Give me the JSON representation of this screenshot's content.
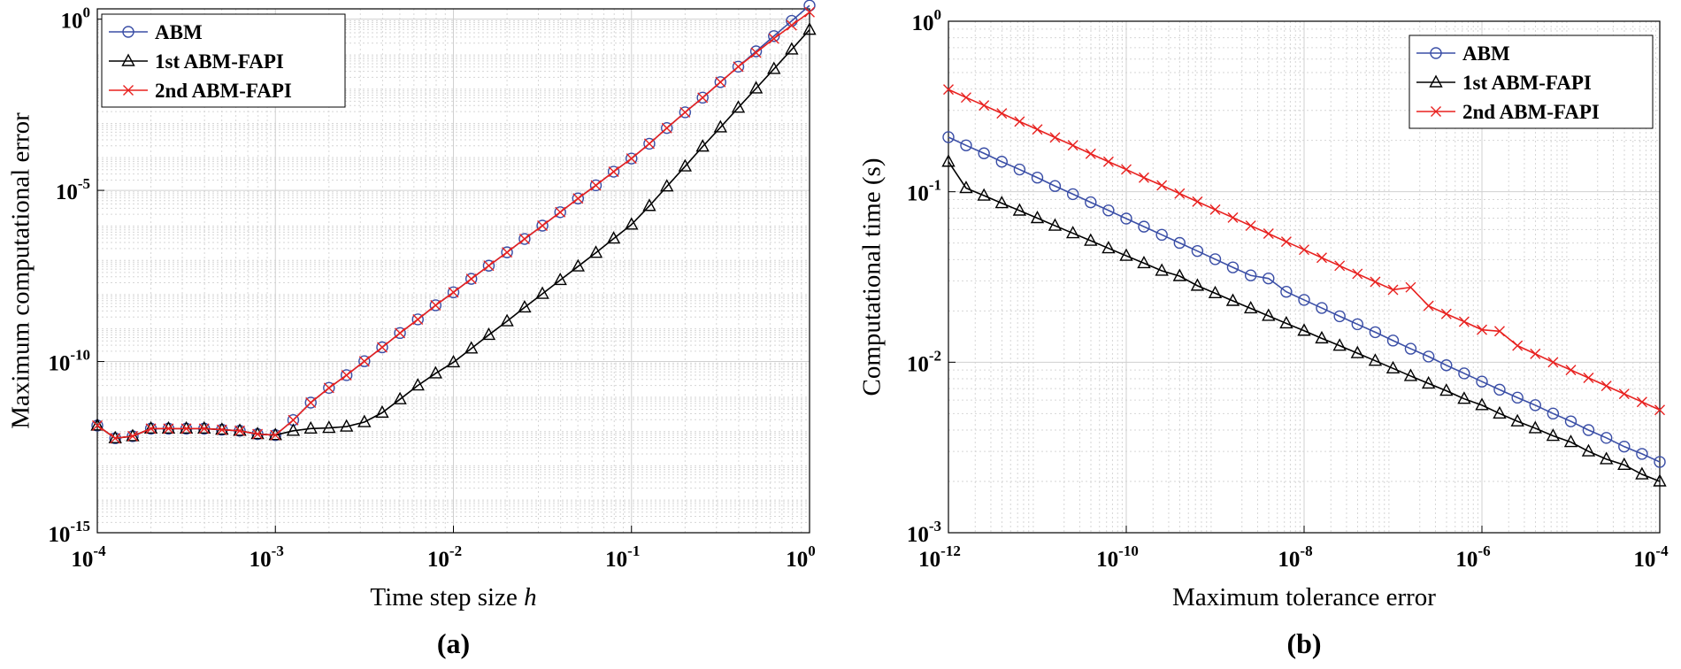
{
  "chart_data": [
    {
      "type": "line",
      "panel_label": "(a)",
      "xlabel": "Time step size",
      "xlabel_var": "h",
      "ylabel": "Maximum computational error",
      "xlog": true,
      "ylog": true,
      "grid": true,
      "minor_grid": true,
      "legend": "upper left",
      "xlim": [
        0.0001,
        1
      ],
      "ylim": [
        1e-15,
        2
      ],
      "xticks": [
        {
          "value": 0.0001,
          "label": "10",
          "exp": "-4"
        },
        {
          "value": 0.001,
          "label": "10",
          "exp": "-3"
        },
        {
          "value": 0.01,
          "label": "10",
          "exp": "-2"
        },
        {
          "value": 0.1,
          "label": "10",
          "exp": "-1"
        },
        {
          "value": 1,
          "label": "10",
          "exp": "0"
        }
      ],
      "yticks": [
        {
          "value": 1e-15,
          "label": "10",
          "exp": "-15"
        },
        {
          "value": 1e-10,
          "label": "10",
          "exp": "-10"
        },
        {
          "value": 1e-05,
          "label": "10",
          "exp": "-5"
        },
        {
          "value": 1,
          "label": "10",
          "exp": "0"
        }
      ],
      "x": [
        0.0001,
        0.000126,
        0.000158,
        0.0002,
        0.000251,
        0.000316,
        0.000398,
        0.000501,
        0.000631,
        0.000794,
        0.001,
        0.00126,
        0.00158,
        0.002,
        0.00251,
        0.00316,
        0.00398,
        0.00501,
        0.00631,
        0.00794,
        0.01,
        0.0126,
        0.0158,
        0.02,
        0.0251,
        0.0316,
        0.0398,
        0.0501,
        0.0631,
        0.0794,
        0.1,
        0.126,
        0.158,
        0.2,
        0.251,
        0.316,
        0.398,
        0.501,
        0.631,
        0.794,
        1
      ],
      "series": [
        {
          "name": "ABM",
          "color": "#3a4ea6",
          "marker": "o",
          "values": [
            1.35e-12,
            5.75e-13,
            6.6e-13,
            1.1e-12,
            1.1e-12,
            1.1e-12,
            1.1e-12,
            1.02e-12,
            9.5e-13,
            7.6e-13,
            7.1e-13,
            1.95e-12,
            6.3e-12,
            1.7e-11,
            4e-11,
            1.02e-10,
            2.6e-10,
            6.8e-10,
            1.7e-09,
            4.4e-09,
            1.05e-08,
            2.6e-08,
            6.3e-08,
            1.55e-07,
            3.8e-07,
            9.3e-07,
            2.3e-06,
            5.8e-06,
            1.4e-05,
            3.5e-05,
            8.5e-05,
            0.00023,
            0.00066,
            0.0019,
            0.0051,
            0.0145,
            0.041,
            0.115,
            0.32,
            0.89,
            2.5
          ]
        },
        {
          "name": "1st ABM-FAPI",
          "color": "#000000",
          "marker": "^",
          "values": [
            1.35e-12,
            5.75e-13,
            6.6e-13,
            1.1e-12,
            1.1e-12,
            1.1e-12,
            1.1e-12,
            1.02e-12,
            9.5e-13,
            7.6e-13,
            7.1e-13,
            9.5e-13,
            1.1e-12,
            1.15e-12,
            1.26e-12,
            1.7e-12,
            3.2e-12,
            7.9e-12,
            2e-11,
            4.5e-11,
            9.5e-11,
            2.4e-10,
            6e-10,
            1.5e-09,
            3.8e-09,
            9.5e-09,
            2.4e-08,
            6e-08,
            1.5e-07,
            3.9e-07,
            1e-06,
            3.5e-06,
            1.3e-05,
            5e-05,
            0.00019,
            0.00069,
            0.0026,
            0.0095,
            0.035,
            0.13,
            0.49
          ]
        },
        {
          "name": "2nd ABM-FAPI",
          "color": "#e8211f",
          "marker": "x",
          "values": [
            1.35e-12,
            5.75e-13,
            6.6e-13,
            1.1e-12,
            1.1e-12,
            1.1e-12,
            1.1e-12,
            1.02e-12,
            9.5e-13,
            7.6e-13,
            7.1e-13,
            1.95e-12,
            6.3e-12,
            1.7e-11,
            4e-11,
            1.02e-10,
            2.6e-10,
            6.8e-10,
            1.7e-09,
            4.4e-09,
            1.05e-08,
            2.6e-08,
            6.3e-08,
            1.55e-07,
            3.8e-07,
            9.3e-07,
            2.3e-06,
            5.8e-06,
            1.4e-05,
            3.5e-05,
            8.5e-05,
            0.00023,
            0.00066,
            0.0019,
            0.0051,
            0.0145,
            0.041,
            0.105,
            0.27,
            0.66,
            1.6
          ]
        }
      ]
    },
    {
      "type": "line",
      "panel_label": "(b)",
      "xlabel": "Maximum tolerance error",
      "ylabel": "Computational time (s)",
      "xlog": true,
      "ylog": true,
      "grid": true,
      "minor_grid": true,
      "legend": "upper right",
      "xlim": [
        1e-12,
        0.0001
      ],
      "ylim": [
        0.001,
        1
      ],
      "xticks": [
        {
          "value": 1e-12,
          "label": "10",
          "exp": "-12"
        },
        {
          "value": 1e-10,
          "label": "10",
          "exp": "-10"
        },
        {
          "value": 1e-08,
          "label": "10",
          "exp": "-8"
        },
        {
          "value": 1e-06,
          "label": "10",
          "exp": "-6"
        },
        {
          "value": 0.0001,
          "label": "10",
          "exp": "-4"
        }
      ],
      "yticks": [
        {
          "value": 0.001,
          "label": "10",
          "exp": "-3"
        },
        {
          "value": 0.01,
          "label": "10",
          "exp": "-2"
        },
        {
          "value": 0.1,
          "label": "10",
          "exp": "-1"
        },
        {
          "value": 1,
          "label": "10",
          "exp": "0"
        }
      ],
      "x": [
        1e-12,
        1.58e-12,
        2.51e-12,
        3.98e-12,
        6.31e-12,
        1e-11,
        1.58e-11,
        2.51e-11,
        3.98e-11,
        6.31e-11,
        1e-10,
        1.58e-10,
        2.51e-10,
        3.98e-10,
        6.31e-10,
        1e-09,
        1.58e-09,
        2.51e-09,
        3.98e-09,
        6.31e-09,
        1e-08,
        1.58e-08,
        2.51e-08,
        3.98e-08,
        6.31e-08,
        1e-07,
        1.58e-07,
        2.51e-07,
        3.98e-07,
        6.31e-07,
        1e-06,
        1.58e-06,
        2.51e-06,
        3.98e-06,
        6.31e-06,
        1e-05,
        1.58e-05,
        2.51e-05,
        3.98e-05,
        6.31e-05,
        0.0001
      ],
      "series": [
        {
          "name": "ABM",
          "color": "#3a4ea6",
          "marker": "o",
          "values": [
            0.209,
            0.187,
            0.168,
            0.15,
            0.135,
            0.121,
            0.108,
            0.0968,
            0.0867,
            0.0777,
            0.0696,
            0.0624,
            0.0559,
            0.0501,
            0.0449,
            0.0402,
            0.036,
            0.0323,
            0.031,
            0.0259,
            0.0232,
            0.0208,
            0.0186,
            0.0167,
            0.015,
            0.0134,
            0.012,
            0.0108,
            0.0096,
            0.0086,
            0.0077,
            0.0069,
            0.0062,
            0.0056,
            0.005,
            0.0045,
            0.004,
            0.0036,
            0.0032,
            0.0029,
            0.0026
          ]
        },
        {
          "name": "1st ABM-FAPI",
          "color": "#000000",
          "marker": "^",
          "values": [
            0.15,
            0.105,
            0.0949,
            0.0857,
            0.0775,
            0.07,
            0.0632,
            0.0571,
            0.0516,
            0.0466,
            0.0421,
            0.0381,
            0.0344,
            0.032,
            0.0281,
            0.0254,
            0.0229,
            0.0207,
            0.0187,
            0.0169,
            0.0153,
            0.0138,
            0.0125,
            0.0113,
            0.0102,
            0.0092,
            0.0083,
            0.0075,
            0.0068,
            0.0061,
            0.0056,
            0.005,
            0.0045,
            0.0041,
            0.0037,
            0.0034,
            0.003,
            0.0027,
            0.0025,
            0.0022,
            0.002
          ]
        },
        {
          "name": "2nd ABM-FAPI",
          "color": "#e8211f",
          "marker": "x",
          "values": [
            0.398,
            0.357,
            0.321,
            0.288,
            0.258,
            0.232,
            0.208,
            0.187,
            0.167,
            0.15,
            0.135,
            0.121,
            0.109,
            0.0975,
            0.0875,
            0.0785,
            0.0705,
            0.0632,
            0.0568,
            0.0509,
            0.0457,
            0.041,
            0.0368,
            0.033,
            0.0296,
            0.0266,
            0.0275,
            0.0214,
            0.0192,
            0.0173,
            0.0155,
            0.0152,
            0.0125,
            0.0112,
            0.01,
            0.009,
            0.0081,
            0.00726,
            0.00652,
            0.00585,
            0.00525
          ]
        }
      ]
    }
  ]
}
